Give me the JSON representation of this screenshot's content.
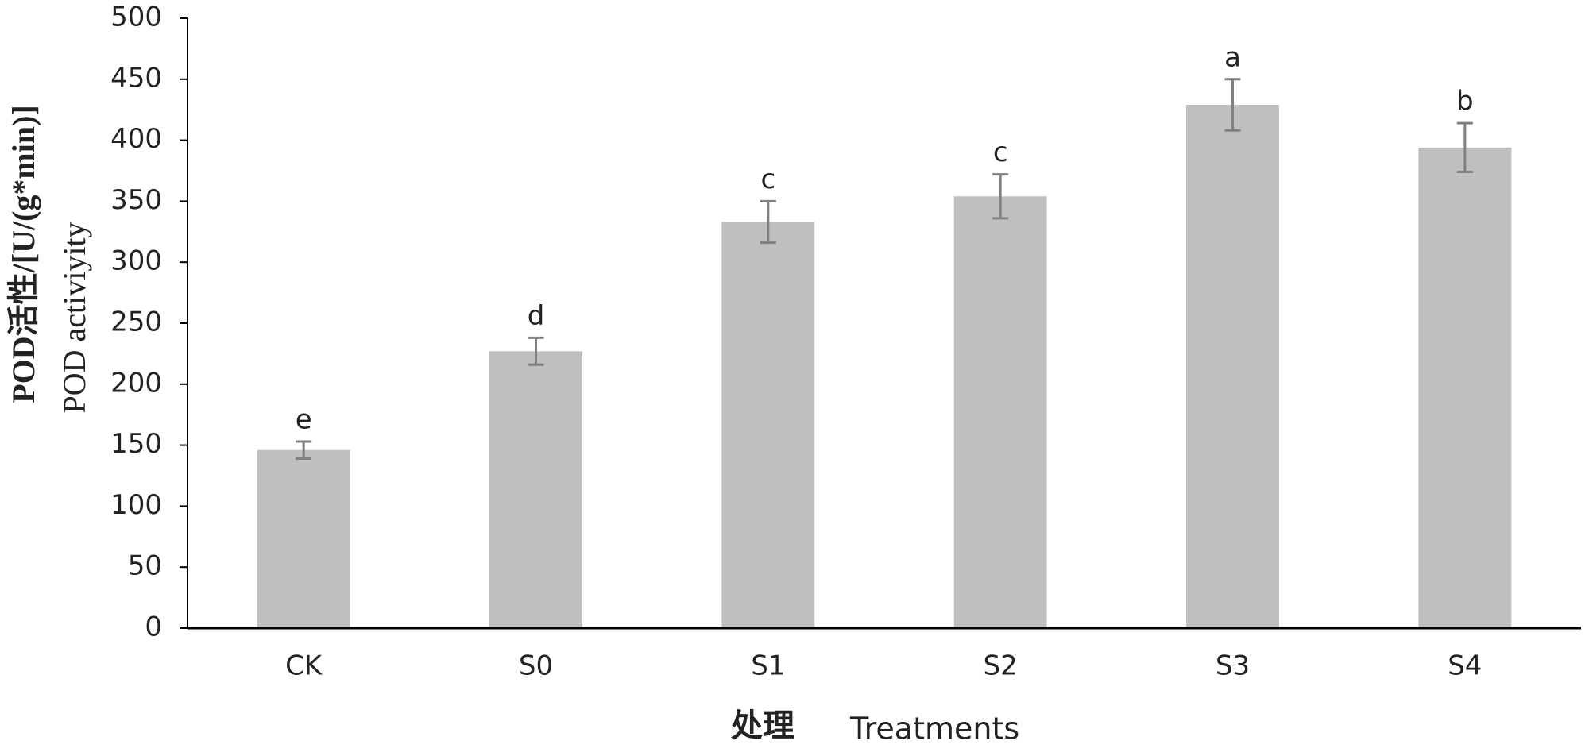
{
  "chart_data": {
    "type": "bar",
    "ylabel": [
      "POD活性/[U/(g*min)]",
      "POD activiyity"
    ],
    "xlabel": [
      "处理",
      "Treatments"
    ],
    "categories": [
      "CK",
      "S0",
      "S1",
      "S2",
      "S3",
      "S4"
    ],
    "values": [
      146,
      227,
      333,
      354,
      429,
      394
    ],
    "errors": [
      7,
      11,
      17,
      18,
      21,
      20
    ],
    "annotations": [
      "e",
      "d",
      "c",
      "c",
      "a",
      "b"
    ],
    "color": "#bfbfbf",
    "error_color": "#808080",
    "ylim": [
      0,
      500
    ],
    "yticks": [
      0,
      50,
      100,
      150,
      200,
      250,
      300,
      350,
      400,
      450,
      500
    ],
    "grid": false
  }
}
